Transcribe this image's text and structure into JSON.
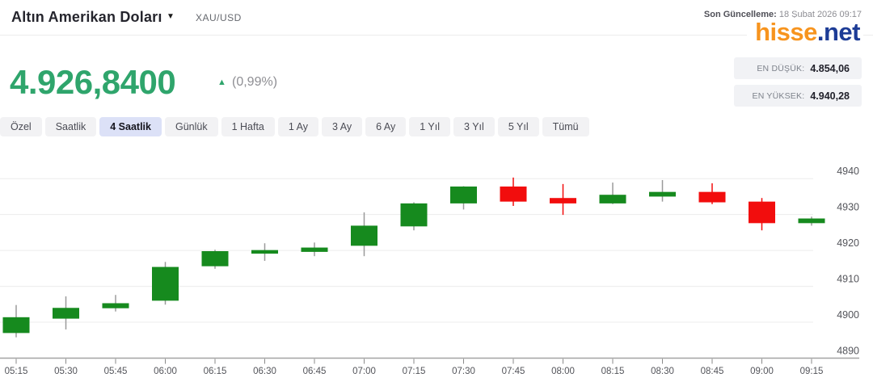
{
  "header": {
    "title": "Altın Amerikan Doları",
    "symbol": "XAU/USD",
    "last_update_label": "Son Güncelleme:",
    "last_update_value": "18 Şubat 2026 09:17",
    "logo_part1": "hisse",
    "logo_part2": ".net"
  },
  "quote": {
    "price": "4.926,8400",
    "change_percent": "(0,99%)",
    "direction": "up",
    "stats": [
      {
        "label": "EN DÜŞÜK:",
        "value": "4.854,06"
      },
      {
        "label": "EN YÜKSEK:",
        "value": "4.940,28"
      }
    ]
  },
  "tabs": {
    "items": [
      "Özel",
      "Saatlik",
      "4 Saatlik",
      "Günlük",
      "1 Hafta",
      "1 Ay",
      "3 Ay",
      "6 Ay",
      "1 Yıl",
      "3 Yıl",
      "5 Yıl",
      "Tümü"
    ],
    "selected": "4 Saatlik"
  },
  "colors": {
    "price_green": "#2fa56c",
    "candle_up": "#168a1e",
    "candle_down": "#f20d0d",
    "wick_up": "#9a9a9a",
    "wick_down": "#f20d0d",
    "gridline": "#ececec",
    "axis_line": "#a3a3a3",
    "axis_text": "#53545a",
    "logo_orange": "#f7941e",
    "logo_navy": "#1d3c96",
    "tab_selected_bg": "#dce1f7"
  },
  "chart_data": {
    "type": "candlestick",
    "title": "XAU/USD intraday candlestick chart (4 Saatlik view, 15-minute candles)",
    "ylim": [
      4890,
      4940
    ],
    "yticks": [
      4890,
      4900,
      4910,
      4920,
      4930,
      4940
    ],
    "grid": true,
    "x": [
      "05:15",
      "05:30",
      "05:45",
      "06:00",
      "06:15",
      "06:30",
      "06:45",
      "07:00",
      "07:15",
      "07:30",
      "07:45",
      "08:00",
      "08:15",
      "08:30",
      "08:45",
      "09:00",
      "09:15"
    ],
    "candles": [
      {
        "t": "05:15",
        "o": 4897.0,
        "h": 4904.8,
        "l": 4895.8,
        "c": 4901.4
      },
      {
        "t": "05:30",
        "o": 4901.0,
        "h": 4907.2,
        "l": 4898.0,
        "c": 4904.0
      },
      {
        "t": "05:45",
        "o": 4903.9,
        "h": 4907.6,
        "l": 4903.0,
        "c": 4905.3
      },
      {
        "t": "06:00",
        "o": 4906.0,
        "h": 4916.8,
        "l": 4904.9,
        "c": 4915.4
      },
      {
        "t": "06:15",
        "o": 4915.6,
        "h": 4920.2,
        "l": 4914.9,
        "c": 4919.8
      },
      {
        "t": "06:30",
        "o": 4919.1,
        "h": 4922.0,
        "l": 4917.1,
        "c": 4920.1
      },
      {
        "t": "06:45",
        "o": 4919.6,
        "h": 4922.2,
        "l": 4918.4,
        "c": 4920.8
      },
      {
        "t": "07:00",
        "o": 4921.3,
        "h": 4930.6,
        "l": 4918.4,
        "c": 4926.9
      },
      {
        "t": "07:15",
        "o": 4926.7,
        "h": 4933.4,
        "l": 4925.6,
        "c": 4933.1
      },
      {
        "t": "07:30",
        "o": 4933.1,
        "h": 4937.9,
        "l": 4931.4,
        "c": 4937.8
      },
      {
        "t": "07:45",
        "o": 4937.8,
        "h": 4940.3,
        "l": 4932.4,
        "c": 4933.6
      },
      {
        "t": "08:00",
        "o": 4934.6,
        "h": 4938.5,
        "l": 4929.9,
        "c": 4933.1
      },
      {
        "t": "08:15",
        "o": 4933.1,
        "h": 4938.9,
        "l": 4932.9,
        "c": 4935.5
      },
      {
        "t": "08:30",
        "o": 4935.0,
        "h": 4939.6,
        "l": 4933.6,
        "c": 4936.3
      },
      {
        "t": "08:45",
        "o": 4936.3,
        "h": 4938.7,
        "l": 4932.9,
        "c": 4933.4
      },
      {
        "t": "09:00",
        "o": 4933.6,
        "h": 4934.6,
        "l": 4925.6,
        "c": 4927.6
      },
      {
        "t": "09:15",
        "o": 4927.6,
        "h": 4929.4,
        "l": 4926.9,
        "c": 4928.9
      }
    ]
  }
}
